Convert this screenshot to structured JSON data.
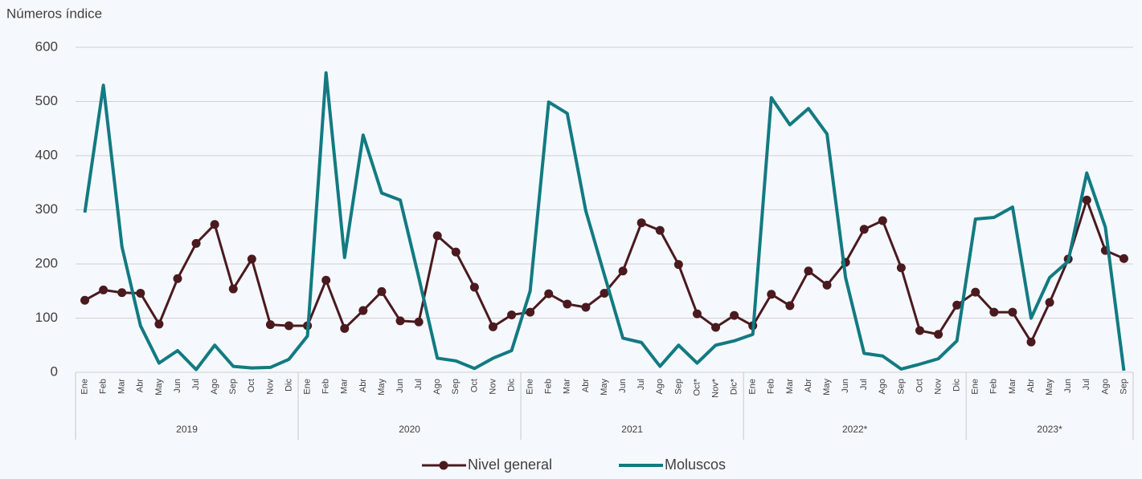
{
  "chart_data": {
    "type": "line",
    "y_label": "Números índice",
    "ylim": [
      0,
      600
    ],
    "yticks": [
      0,
      100,
      200,
      300,
      400,
      500,
      600
    ],
    "grid": true,
    "groups": [
      {
        "name": "2019",
        "categories": [
          "Ene",
          "Feb",
          "Mar",
          "Abr",
          "May",
          "Jun",
          "Jul",
          "Ago",
          "Sep",
          "Oct",
          "Nov",
          "Dic"
        ]
      },
      {
        "name": "2020",
        "categories": [
          "Ene",
          "Feb",
          "Mar",
          "Abr",
          "May",
          "Jun",
          "Jul",
          "Ago",
          "Sep",
          "Oct",
          "Nov",
          "Dic"
        ]
      },
      {
        "name": "2021",
        "categories": [
          "Ene",
          "Feb",
          "Mar",
          "Abr",
          "May",
          "Jun",
          "Jul",
          "Ago",
          "Sep",
          "Oct*",
          "Nov*",
          "Dic*"
        ]
      },
      {
        "name": "2022*",
        "categories": [
          "Ene",
          "Feb",
          "Mar",
          "Abr",
          "May",
          "Jun",
          "Jul",
          "Ago",
          "Sep",
          "Oct",
          "Nov",
          "Dic"
        ]
      },
      {
        "name": "2023*",
        "categories": [
          "Ene",
          "Feb",
          "Mar",
          "Abr",
          "May",
          "Jun",
          "Jul",
          "Ago",
          "Sep"
        ]
      }
    ],
    "legend": "bottom",
    "series": [
      {
        "name": "Nivel general",
        "color": "#4a1a1f",
        "markers": true,
        "values": [
          133,
          152,
          147,
          146,
          89,
          173,
          238,
          273,
          154,
          209,
          88,
          86,
          86,
          170,
          81,
          114,
          149,
          95,
          93,
          252,
          222,
          157,
          84,
          106,
          111,
          145,
          126,
          120,
          146,
          187,
          276,
          262,
          199,
          108,
          83,
          105,
          86,
          144,
          123,
          187,
          161,
          203,
          264,
          280,
          193,
          77,
          70,
          124,
          148,
          111,
          111,
          56,
          129,
          209,
          318,
          225,
          210
        ]
      },
      {
        "name": "Moluscos",
        "color": "#127a82",
        "markers": false,
        "values": [
          295,
          530,
          232,
          86,
          17,
          40,
          5,
          50,
          11,
          8,
          9,
          24,
          67,
          553,
          212,
          438,
          331,
          318,
          175,
          26,
          21,
          7,
          26,
          40,
          150,
          499,
          478,
          298,
          180,
          63,
          55,
          11,
          50,
          17,
          50,
          58,
          70,
          507,
          457,
          487,
          440,
          175,
          35,
          30,
          6,
          15,
          25,
          58,
          283,
          286,
          305,
          100,
          175,
          205,
          368,
          268,
          3
        ]
      }
    ]
  }
}
